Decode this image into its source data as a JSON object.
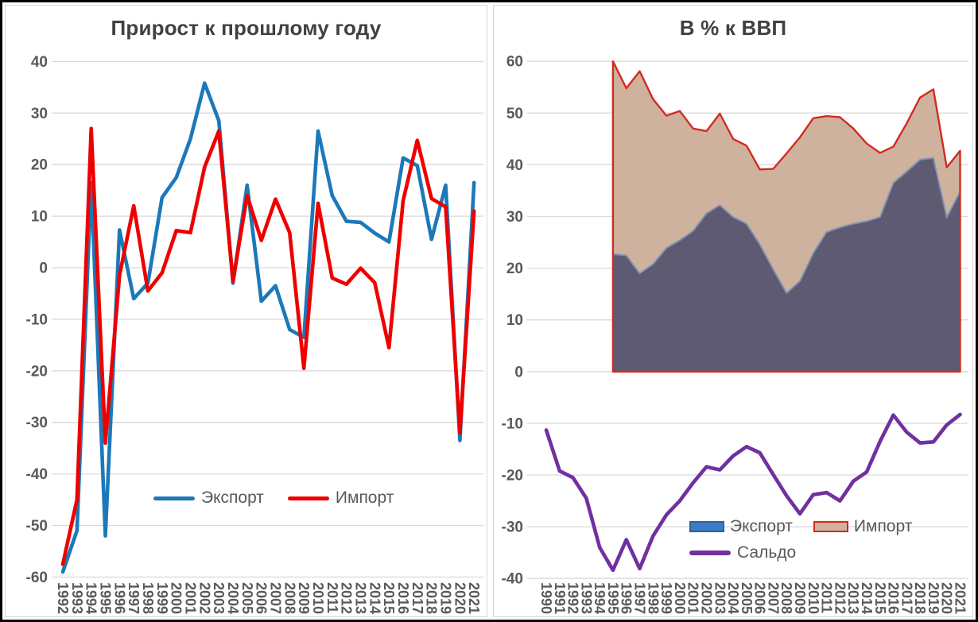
{
  "style": {
    "title_color": "#404040",
    "tick_text_color": "#595959",
    "gridline_color": "#d9d9d9",
    "frame_color": "#000000"
  },
  "chart_data": [
    {
      "type": "line",
      "title": "Прирост к прошлому году",
      "categories": [
        "1992",
        "1993",
        "1994",
        "1995",
        "1996",
        "1997",
        "1998",
        "1999",
        "2000",
        "2001",
        "2002",
        "2003",
        "2004",
        "2005",
        "2006",
        "2007",
        "2008",
        "2009",
        "2010",
        "2011",
        "2012",
        "2013",
        "2014",
        "2015",
        "2016",
        "2017",
        "2018",
        "2019",
        "2020",
        "2021"
      ],
      "yticks": [
        40,
        30,
        20,
        10,
        0,
        -10,
        -20,
        -30,
        -40,
        -50,
        -60
      ],
      "ylim": [
        -60,
        40
      ],
      "grid": true,
      "legend_position": "inside-bottom",
      "series": [
        {
          "name": "Экспорт",
          "type": "line",
          "color": "#1b79ba",
          "values": [
            -59,
            -51,
            16.5,
            -52,
            7.3,
            -6,
            -3,
            13.6,
            17.5,
            25,
            35.8,
            28.5,
            -3,
            16,
            -6.5,
            -3.5,
            -12,
            -13.5,
            26.5,
            14,
            9,
            8.8,
            6.7,
            5,
            21.3,
            19.8,
            5.5,
            16,
            -33.5,
            16.5
          ]
        },
        {
          "name": "Импорт",
          "type": "line",
          "color": "#ee0000",
          "values": [
            -57.5,
            -45,
            27,
            -34,
            -1.5,
            12,
            -4.5,
            -1,
            7.2,
            6.8,
            19.5,
            26.5,
            -2.6,
            14,
            5.3,
            13.3,
            6.8,
            -19.5,
            12.5,
            -2,
            -3.2,
            -0.1,
            -2.9,
            -15.5,
            13,
            24.7,
            13.4,
            11.8,
            -32,
            11
          ]
        }
      ]
    },
    {
      "type": "area",
      "title": "В % к ВВП",
      "categories": [
        "1990",
        "1991",
        "1992",
        "1993",
        "1994",
        "1995",
        "1996",
        "1997",
        "1998",
        "1999",
        "2000",
        "2001",
        "2002",
        "2003",
        "2004",
        "2005",
        "2006",
        "2007",
        "2008",
        "2009",
        "2010",
        "2011",
        "2012",
        "2013",
        "2014",
        "2015",
        "2016",
        "2017",
        "2018",
        "2019",
        "2020",
        "2021"
      ],
      "yticks": [
        60,
        50,
        40,
        30,
        20,
        10,
        0,
        -10,
        -20,
        -30,
        -40
      ],
      "ylim": [
        -40,
        60
      ],
      "grid": true,
      "legend_position": "inside-bottom-right",
      "series": [
        {
          "name": "Импорт",
          "type": "area",
          "fill": "#ceb29e",
          "border": "#d42a20",
          "start_category": "1995",
          "values": [
            60,
            54.8,
            58.1,
            52.7,
            49.5,
            50.4,
            47,
            46.5,
            49.9,
            45,
            43.7,
            39.1,
            39.2,
            42.2,
            45.3,
            49,
            49.4,
            49.2,
            47,
            44.1,
            42.3,
            43.5,
            48,
            53,
            54.6,
            39.5,
            42.7
          ]
        },
        {
          "name": "Экспорт",
          "type": "area",
          "fill": "#5d5a72",
          "top_stroke": "#8495b3",
          "start_category": "1995",
          "values": [
            22.7,
            22.5,
            19,
            20.8,
            23.9,
            25.4,
            27.2,
            30.6,
            32.2,
            29.9,
            28.6,
            24.6,
            19.8,
            15.2,
            17.5,
            22.9,
            27,
            27.9,
            28.6,
            29.1,
            29.9,
            36.5,
            38.7,
            41,
            41.3,
            29.9,
            34.8
          ]
        },
        {
          "name": "Сальдо",
          "type": "line",
          "color": "#7030a0",
          "start_category": "1990",
          "values": [
            -11.3,
            -19.2,
            -20.5,
            -24.5,
            -34,
            -38.4,
            -32.5,
            -38.1,
            -31.8,
            -27.7,
            -25,
            -21.5,
            -18.4,
            -19,
            -16.3,
            -14.5,
            -15.7,
            -19.9,
            -24,
            -27.5,
            -23.8,
            -23.4,
            -25,
            -21.2,
            -19.4,
            -13.5,
            -8.4,
            -11.7,
            -13.8,
            -13.6,
            -10.3,
            -8.3
          ]
        }
      ],
      "legend_swatches": {
        "export_fill": "#3e7bc7",
        "export_border": "#2e5fa3",
        "import_fill": "#cfb3a0",
        "import_border": "#d42a20",
        "saldo_color": "#7030a0"
      }
    }
  ]
}
